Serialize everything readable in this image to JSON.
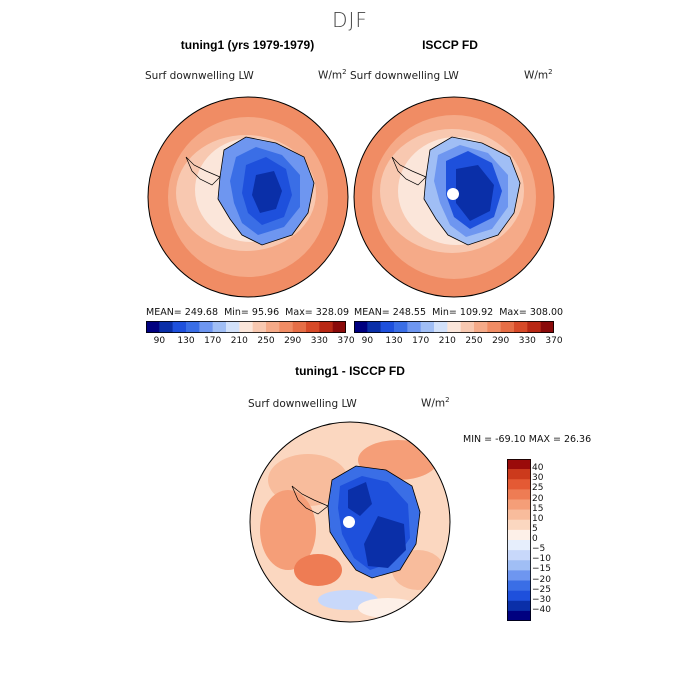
{
  "page": {
    "title": "DJF"
  },
  "panels": [
    {
      "title": "tuning1 (yrs 1979-1979)",
      "variable": "Surf downwelling LW",
      "units": "W/m",
      "units_sup": "2",
      "stats": {
        "mean_text": "MEAN= 249.68",
        "min_text": "Min=  95.96",
        "max_text": "Max= 328.09"
      }
    },
    {
      "title": "ISCCP FD",
      "variable": "Surf downwelling LW",
      "units": "W/m",
      "units_sup": "2",
      "stats": {
        "mean_text": "MEAN= 248.55",
        "min_text": "Min= 109.92",
        "max_text": "Max= 308.00"
      }
    },
    {
      "title": "tuning1 - ISCCP FD",
      "variable": "Surf downwelling LW",
      "units": "W/m",
      "units_sup": "2",
      "stats": {
        "minmax_text": "MIN = -69.10 MAX =  26.36"
      }
    }
  ],
  "colors": {
    "top_scale": [
      "#000080",
      "#0a2fa8",
      "#1e50dc",
      "#3a6ee6",
      "#6e96f0",
      "#a0bef5",
      "#d2e1fa",
      "#fbe6da",
      "#f8c8b0",
      "#f5aa88",
      "#f08c64",
      "#e66e46",
      "#d74a28",
      "#b82814",
      "#8a0a0a"
    ],
    "diff_scale": [
      "#000080",
      "#0a2fa8",
      "#1e50dc",
      "#3a6ee6",
      "#6e96f0",
      "#a0bef5",
      "#c8d8fa",
      "#e6eefc",
      "#fdf0e8",
      "#fbd7c0",
      "#f8bc9c",
      "#f59e78",
      "#ee7c54",
      "#e45a34",
      "#cc3a1c",
      "#9a0a0a"
    ],
    "ocean_warm": "#f08c64",
    "ocean_mid": "#f5aa88",
    "ocean_light": "#f8c8b0",
    "pale": "#fbe6da"
  },
  "chart_data": [
    {
      "type": "heatmap",
      "title": "tuning1 (yrs 1979-1979)",
      "variable": "Surf downwelling LW",
      "units": "W/m2",
      "colorbar_ticks": [
        90,
        130,
        170,
        210,
        250,
        290,
        330,
        370
      ],
      "stats": {
        "mean": 249.68,
        "min": 95.96,
        "max": 328.09
      }
    },
    {
      "type": "heatmap",
      "title": "ISCCP FD",
      "variable": "Surf downwelling LW",
      "units": "W/m2",
      "colorbar_ticks": [
        90,
        130,
        170,
        210,
        250,
        290,
        330,
        370
      ],
      "stats": {
        "mean": 248.55,
        "min": 109.92,
        "max": 308.0
      }
    },
    {
      "type": "heatmap",
      "title": "tuning1 - ISCCP FD",
      "variable": "Surf downwelling LW",
      "units": "W/m2",
      "colorbar_ticks": [
        40,
        30,
        25,
        20,
        15,
        10,
        5,
        0,
        -5,
        -10,
        -15,
        -20,
        -25,
        -30,
        -40
      ],
      "stats": {
        "min": -69.1,
        "max": 26.36
      }
    }
  ]
}
